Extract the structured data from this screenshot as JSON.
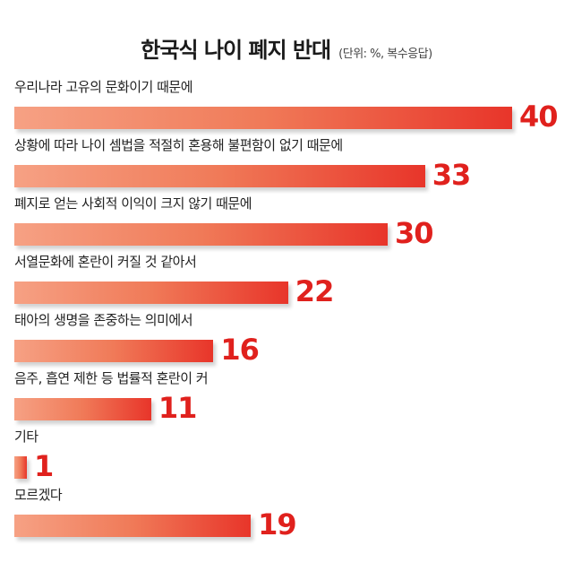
{
  "title": "한국식 나이 폐지 반대",
  "subtitle": "(단위: %, 복수응답)",
  "chart_data": {
    "type": "bar",
    "orientation": "horizontal",
    "title": "한국식 나이 폐지 반대",
    "subtitle": "(단위: %, 복수응답)",
    "unit": "%",
    "xlim": [
      0,
      40
    ],
    "grid": false,
    "legend": "none",
    "colors": {
      "bar_start": "#f6a184",
      "bar_end": "#e8352a",
      "value_label": "#e0211d"
    },
    "categories": [
      "우리나라 고유의 문화이기 때문에",
      "상황에 따라 나이 셈법을 적절히 혼용해 불편함이 없기 때문에",
      "폐지로 얻는 사회적 이익이 크지 않기 때문에",
      "서열문화에 혼란이 커질 것 같아서",
      "태아의 생명을 존중하는 의미에서",
      "음주, 흡연 제한 등 법률적 혼란이 커",
      "기타",
      "모르겠다"
    ],
    "values": [
      40,
      33,
      30,
      22,
      16,
      11,
      1,
      19
    ]
  }
}
